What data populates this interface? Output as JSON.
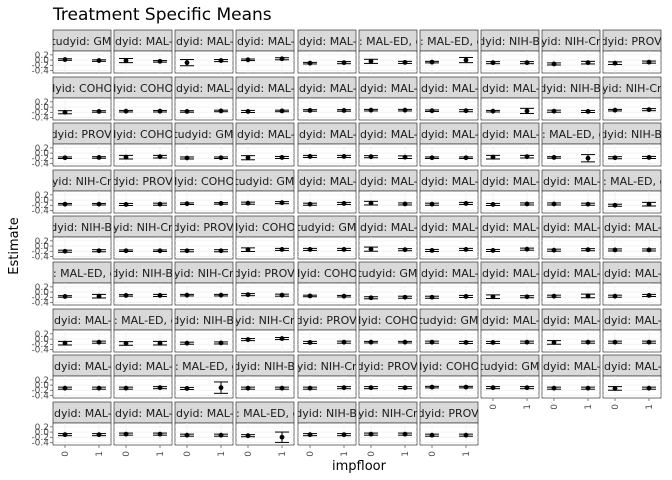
{
  "chart_data": {
    "type": "scatter",
    "title": "Treatment Specific Means",
    "xlabel": "impfloor",
    "ylabel": "Estimate",
    "x_categories": [
      "0",
      "1"
    ],
    "y_ticks": [
      0.2,
      0.0,
      -0.2,
      -0.4
    ],
    "y_tick_labels": [
      "0.2",
      "0.0",
      "-0.2",
      "-0.4"
    ],
    "ylim": [
      -0.5,
      0.35
    ],
    "grid": true,
    "ncol": 10,
    "panels": [
      {
        "strip": "studyid: GMS",
        "values": [
          [
            0.02,
            0.03
          ],
          [
            -0.02,
            0.03
          ]
        ]
      },
      {
        "strip": "studyid: MAL-ED",
        "values": [
          [
            -0.02,
            0.08
          ],
          [
            -0.05,
            0.03
          ]
        ]
      },
      {
        "strip": "studyid: MAL-ED",
        "values": [
          [
            -0.1,
            0.12
          ],
          [
            -0.02,
            0.04
          ]
        ]
      },
      {
        "strip": "studyid: MAL-ED",
        "values": [
          [
            0.01,
            0.03
          ],
          [
            0.05,
            0.04
          ]
        ]
      },
      {
        "strip": "studyid: MAL-ED",
        "values": [
          [
            -0.12,
            0.03
          ],
          [
            -0.1,
            0.04
          ]
        ]
      },
      {
        "strip": "studyid: MAL-ED, country",
        "values": [
          [
            -0.05,
            0.08
          ],
          [
            -0.09,
            0.04
          ]
        ]
      },
      {
        "strip": "studyid: MAL-ED, country",
        "values": [
          [
            -0.08,
            0.03
          ],
          [
            0.0,
            0.1
          ]
        ]
      },
      {
        "strip": "studyid: NIH-Birth",
        "values": [
          [
            -0.1,
            0.04
          ],
          [
            -0.1,
            0.04
          ]
        ]
      },
      {
        "strip": "studyid: NIH-Crypto",
        "values": [
          [
            -0.15,
            0.04
          ],
          [
            -0.1,
            0.05
          ]
        ]
      },
      {
        "strip": "studyid: PROVIDE",
        "values": [
          [
            -0.12,
            0.05
          ],
          [
            -0.08,
            0.04
          ]
        ]
      },
      {
        "strip": "studyid: COHORTS",
        "values": [
          [
            -0.2,
            0.06
          ],
          [
            -0.17,
            0.03
          ]
        ]
      },
      {
        "strip": "studyid: COHORTS",
        "values": [
          [
            -0.16,
            0.03
          ],
          [
            -0.16,
            0.03
          ]
        ]
      },
      {
        "strip": "studyid: MAL-ED",
        "values": [
          [
            -0.17,
            0.03
          ],
          [
            -0.15,
            0.03
          ]
        ]
      },
      {
        "strip": "studyid: MAL-ED",
        "values": [
          [
            -0.17,
            0.04
          ],
          [
            -0.15,
            0.03
          ]
        ]
      },
      {
        "strip": "studyid: MAL-ED",
        "values": [
          [
            -0.13,
            0.03
          ],
          [
            -0.13,
            0.03
          ]
        ]
      },
      {
        "strip": "studyid: MAL-ED",
        "values": [
          [
            -0.12,
            0.03
          ],
          [
            -0.12,
            0.03
          ]
        ]
      },
      {
        "strip": "studyid: MAL-ED",
        "values": [
          [
            -0.14,
            0.03
          ],
          [
            -0.14,
            0.04
          ]
        ]
      },
      {
        "strip": "studyid: MAL-ED",
        "values": [
          [
            -0.16,
            0.03
          ],
          [
            -0.15,
            0.1
          ]
        ]
      },
      {
        "strip": "studyid: NIH-Birth",
        "values": [
          [
            -0.16,
            0.04
          ],
          [
            -0.17,
            0.04
          ]
        ]
      },
      {
        "strip": "studyid: NIH-Crypto",
        "values": [
          [
            -0.12,
            0.03
          ],
          [
            -0.1,
            0.04
          ]
        ]
      },
      {
        "strip": "studyid: PROVIDE",
        "values": [
          [
            -0.18,
            0.03
          ],
          [
            -0.17,
            0.03
          ]
        ]
      },
      {
        "strip": "studyid: COHORTS",
        "values": [
          [
            -0.16,
            0.07
          ],
          [
            -0.14,
            0.05
          ]
        ]
      },
      {
        "strip": "studyid: GMS",
        "values": [
          [
            -0.19,
            0.04
          ],
          [
            -0.18,
            0.03
          ]
        ]
      },
      {
        "strip": "studyid: MAL-ED",
        "values": [
          [
            -0.18,
            0.08
          ],
          [
            -0.17,
            0.04
          ]
        ]
      },
      {
        "strip": "studyid: MAL-ED",
        "values": [
          [
            -0.13,
            0.04
          ],
          [
            -0.13,
            0.04
          ]
        ]
      },
      {
        "strip": "studyid: MAL-ED",
        "values": [
          [
            -0.14,
            0.04
          ],
          [
            -0.16,
            0.05
          ]
        ]
      },
      {
        "strip": "studyid: MAL-ED",
        "values": [
          [
            -0.18,
            0.03
          ],
          [
            -0.18,
            0.03
          ]
        ]
      },
      {
        "strip": "studyid: MAL-ED",
        "values": [
          [
            -0.16,
            0.07
          ],
          [
            -0.14,
            0.05
          ]
        ]
      },
      {
        "strip": "studyid: MAL-ED, country",
        "values": [
          [
            -0.17,
            0.03
          ],
          [
            -0.2,
            0.14
          ]
        ]
      },
      {
        "strip": "studyid: NIH-Birth",
        "values": [
          [
            -0.18,
            0.04
          ],
          [
            -0.17,
            0.04
          ]
        ]
      },
      {
        "strip": "studyid: NIH-Crypto",
        "values": [
          [
            -0.16,
            0.03
          ],
          [
            -0.16,
            0.03
          ]
        ]
      },
      {
        "strip": "studyid: PROVIDE",
        "values": [
          [
            -0.17,
            0.04
          ],
          [
            -0.16,
            0.04
          ]
        ]
      },
      {
        "strip": "studyid: COHORTS",
        "values": [
          [
            -0.14,
            0.03
          ],
          [
            -0.13,
            0.03
          ]
        ]
      },
      {
        "strip": "studyid: GMS",
        "values": [
          [
            -0.12,
            0.04
          ],
          [
            -0.1,
            0.04
          ]
        ]
      },
      {
        "strip": "studyid: MAL-ED",
        "values": [
          [
            -0.16,
            0.04
          ],
          [
            -0.13,
            0.04
          ]
        ]
      },
      {
        "strip": "studyid: MAL-ED",
        "values": [
          [
            -0.12,
            0.07
          ],
          [
            -0.15,
            0.04
          ]
        ]
      },
      {
        "strip": "studyid: MAL-ED",
        "values": [
          [
            -0.16,
            0.04
          ],
          [
            -0.13,
            0.04
          ]
        ]
      },
      {
        "strip": "studyid: MAL-ED",
        "values": [
          [
            -0.17,
            0.04
          ],
          [
            -0.15,
            0.04
          ]
        ]
      },
      {
        "strip": "studyid: MAL-ED",
        "values": [
          [
            -0.15,
            0.04
          ],
          [
            -0.16,
            0.04
          ]
        ]
      },
      {
        "strip": "studyid: MAL-ED, country",
        "values": [
          [
            -0.2,
            0.04
          ],
          [
            -0.16,
            0.07
          ]
        ]
      },
      {
        "strip": "studyid: NIH-Birth",
        "values": [
          [
            -0.2,
            0.04
          ],
          [
            -0.18,
            0.04
          ]
        ]
      },
      {
        "strip": "studyid: NIH-Crypto",
        "values": [
          [
            -0.18,
            0.03
          ],
          [
            -0.18,
            0.03
          ]
        ]
      },
      {
        "strip": "studyid: PROVIDE",
        "values": [
          [
            -0.18,
            0.04
          ],
          [
            -0.18,
            0.04
          ]
        ]
      },
      {
        "strip": "studyid: COHORTS",
        "values": [
          [
            -0.14,
            0.07
          ],
          [
            -0.13,
            0.04
          ]
        ]
      },
      {
        "strip": "studyid: GMS",
        "values": [
          [
            -0.13,
            0.04
          ],
          [
            -0.13,
            0.04
          ]
        ]
      },
      {
        "strip": "studyid: MAL-ED",
        "values": [
          [
            -0.12,
            0.08
          ],
          [
            -0.14,
            0.04
          ]
        ]
      },
      {
        "strip": "studyid: MAL-ED",
        "values": [
          [
            -0.17,
            0.04
          ],
          [
            -0.13,
            0.04
          ]
        ]
      },
      {
        "strip": "studyid: MAL-ED",
        "values": [
          [
            -0.17,
            0.04
          ],
          [
            -0.12,
            0.04
          ]
        ]
      },
      {
        "strip": "studyid: MAL-ED",
        "values": [
          [
            -0.16,
            0.04
          ],
          [
            -0.14,
            0.04
          ]
        ]
      },
      {
        "strip": "studyid: MAL-ED",
        "values": [
          [
            -0.15,
            0.04
          ],
          [
            -0.15,
            0.04
          ]
        ]
      },
      {
        "strip": "studyid: MAL-ED, country",
        "values": [
          [
            -0.17,
            0.03
          ],
          [
            -0.16,
            0.07
          ]
        ]
      },
      {
        "strip": "studyid: NIH-Birth",
        "values": [
          [
            -0.13,
            0.03
          ],
          [
            -0.13,
            0.04
          ]
        ]
      },
      {
        "strip": "studyid: NIH-Crypto",
        "values": [
          [
            -0.12,
            0.03
          ],
          [
            -0.12,
            0.03
          ]
        ]
      },
      {
        "strip": "studyid: PROVIDE",
        "values": [
          [
            -0.1,
            0.04
          ],
          [
            -0.12,
            0.04
          ]
        ]
      },
      {
        "strip": "studyid: COHORTS",
        "values": [
          [
            -0.15,
            0.03
          ],
          [
            -0.16,
            0.03
          ]
        ]
      },
      {
        "strip": "studyid: GMS",
        "values": [
          [
            -0.22,
            0.04
          ],
          [
            -0.2,
            0.04
          ]
        ]
      },
      {
        "strip": "studyid: MAL-ED",
        "values": [
          [
            -0.2,
            0.04
          ],
          [
            -0.17,
            0.04
          ]
        ]
      },
      {
        "strip": "studyid: MAL-ED",
        "values": [
          [
            -0.18,
            0.07
          ],
          [
            -0.18,
            0.04
          ]
        ]
      },
      {
        "strip": "studyid: MAL-ED",
        "values": [
          [
            -0.16,
            0.04
          ],
          [
            -0.15,
            0.07
          ]
        ]
      },
      {
        "strip": "studyid: MAL-ED",
        "values": [
          [
            -0.16,
            0.04
          ],
          [
            -0.13,
            0.04
          ]
        ]
      },
      {
        "strip": "studyid: MAL-ED",
        "values": [
          [
            -0.16,
            0.07
          ],
          [
            -0.12,
            0.04
          ]
        ]
      },
      {
        "strip": "studyid: MAL-ED, country",
        "values": [
          [
            -0.17,
            0.07
          ],
          [
            -0.16,
            0.07
          ]
        ]
      },
      {
        "strip": "studyid: NIH-Birth",
        "values": [
          [
            -0.16,
            0.04
          ],
          [
            -0.15,
            0.04
          ]
        ]
      },
      {
        "strip": "studyid: NIH-Crypto",
        "values": [
          [
            -0.02,
            0.04
          ],
          [
            0.02,
            0.04
          ]
        ]
      },
      {
        "strip": "studyid: PROVIDE",
        "values": [
          [
            -0.13,
            0.04
          ],
          [
            -0.12,
            0.04
          ]
        ]
      },
      {
        "strip": "studyid: COHORTS",
        "values": [
          [
            -0.12,
            0.03
          ],
          [
            -0.12,
            0.03
          ]
        ]
      },
      {
        "strip": "studyid: GMS",
        "values": [
          [
            -0.12,
            0.04
          ],
          [
            -0.13,
            0.04
          ]
        ]
      },
      {
        "strip": "studyid: MAL-ED",
        "values": [
          [
            -0.13,
            0.04
          ],
          [
            -0.12,
            0.04
          ]
        ]
      },
      {
        "strip": "studyid: MAL-ED",
        "values": [
          [
            -0.13,
            0.07
          ],
          [
            -0.12,
            0.04
          ]
        ]
      },
      {
        "strip": "studyid: MAL-ED",
        "values": [
          [
            -0.12,
            0.04
          ],
          [
            -0.12,
            0.04
          ]
        ]
      },
      {
        "strip": "studyid: MAL-ED",
        "values": [
          [
            -0.12,
            0.04
          ],
          [
            -0.12,
            0.04
          ]
        ]
      },
      {
        "strip": "studyid: MAL-ED",
        "values": [
          [
            -0.12,
            0.04
          ],
          [
            -0.1,
            0.04
          ]
        ]
      },
      {
        "strip": "studyid: MAL-ED, country",
        "values": [
          [
            -0.13,
            0.04
          ],
          [
            -0.1,
            0.22
          ]
        ]
      },
      {
        "strip": "studyid: NIH-Birth",
        "values": [
          [
            -0.12,
            0.04
          ],
          [
            -0.12,
            0.04
          ]
        ]
      },
      {
        "strip": "studyid: NIH-Crypto",
        "values": [
          [
            -0.12,
            0.04
          ],
          [
            -0.1,
            0.04
          ]
        ]
      },
      {
        "strip": "studyid: PROVIDE",
        "values": [
          [
            -0.1,
            0.04
          ],
          [
            -0.1,
            0.04
          ]
        ]
      },
      {
        "strip": "studyid: COHORTS",
        "values": [
          [
            -0.08,
            0.03
          ],
          [
            -0.08,
            0.03
          ]
        ]
      },
      {
        "strip": "studyid: GMS",
        "values": [
          [
            -0.1,
            0.04
          ],
          [
            -0.1,
            0.04
          ]
        ]
      },
      {
        "strip": "studyid: MAL-ED",
        "values": [
          [
            -0.12,
            0.04
          ],
          [
            -0.12,
            0.04
          ]
        ]
      },
      {
        "strip": "studyid: MAL-ED",
        "values": [
          [
            -0.13,
            0.07
          ],
          [
            -0.12,
            0.04
          ]
        ]
      },
      {
        "strip": "studyid: MAL-ED",
        "values": [
          [
            -0.1,
            0.04
          ],
          [
            -0.1,
            0.04
          ]
        ]
      },
      {
        "strip": "studyid: MAL-ED",
        "values": [
          [
            -0.08,
            0.04
          ],
          [
            -0.08,
            0.04
          ]
        ]
      },
      {
        "strip": "studyid: MAL-ED",
        "values": [
          [
            -0.12,
            0.04
          ],
          [
            -0.12,
            0.04
          ]
        ]
      },
      {
        "strip": "studyid: MAL-ED, country",
        "values": [
          [
            -0.14,
            0.04
          ],
          [
            -0.2,
            0.2
          ]
        ]
      },
      {
        "strip": "studyid: NIH-Birth",
        "values": [
          [
            -0.1,
            0.04
          ],
          [
            -0.1,
            0.04
          ]
        ]
      },
      {
        "strip": "studyid: NIH-Crypto",
        "values": [
          [
            -0.08,
            0.04
          ],
          [
            -0.08,
            0.04
          ]
        ]
      },
      {
        "strip": "studyid: PROVIDE",
        "values": [
          [
            -0.12,
            0.04
          ],
          [
            -0.12,
            0.04
          ]
        ]
      }
    ]
  }
}
